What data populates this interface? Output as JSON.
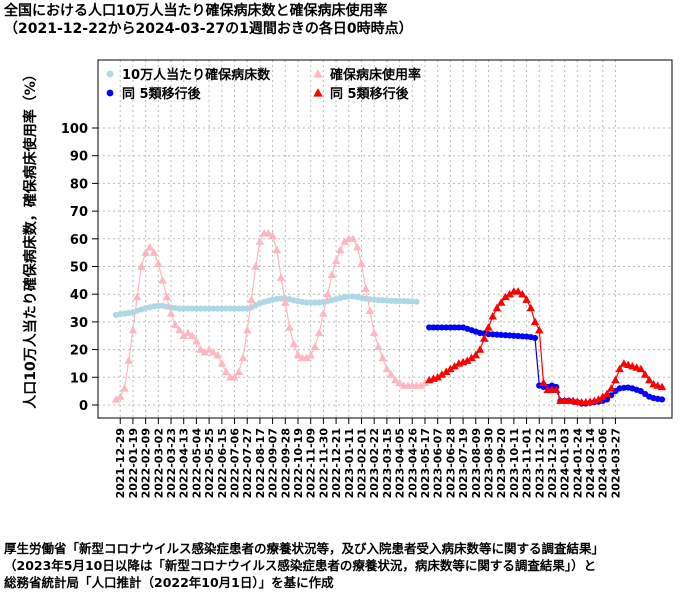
{
  "title": {
    "line1": "全国における人口10万人当たり確保病床数と確保病床使用率",
    "line2": "（2021-12-22から2024-03-27の1週間おきの各日0時時点）"
  },
  "footnote": {
    "line1": "厚生労働省「新型コロナウイルス感染症患者の療養状況等，及び入院患者受入病床数等に関する調査結果」",
    "line2": "（2023年5月10日以降は「新型コロナウイルス感染症患者の療養状況，病床数等に関する調査結果」）と",
    "line3": "総務省統計局「人口推計（2022年10月1日）」を基に作成"
  },
  "colors": {
    "beds": "#add8e6",
    "beds_after": "#0000ff",
    "usage": "#ffb6c1",
    "usage_after": "#ff0000",
    "grid": "#bbbbbb"
  },
  "chart_data": {
    "type": "scatter",
    "ylabel": "人口10万人当たり確保病床数，確保病床使用率（%）",
    "xlabel": "",
    "ylim": [
      0,
      100
    ],
    "yticks": [
      0,
      10,
      20,
      30,
      40,
      50,
      60,
      70,
      80,
      90,
      100
    ],
    "grid": true,
    "legend_position": "top-left",
    "x_start": "2021-12-22",
    "x_step_days": 7,
    "x_tick_labels": [
      "2021-12-29",
      "2022-01-19",
      "2022-02-09",
      "2022-03-02",
      "2022-03-23",
      "2022-04-13",
      "2022-05-04",
      "2022-05-25",
      "2022-06-15",
      "2022-07-06",
      "2022-07-27",
      "2022-08-17",
      "2022-09-07",
      "2022-09-28",
      "2022-10-19",
      "2022-11-09",
      "2022-11-30",
      "2022-12-21",
      "2023-01-11",
      "2023-02-01",
      "2023-02-22",
      "2023-03-15",
      "2023-04-05",
      "2023-04-26",
      "2023-05-17",
      "2023-06-07",
      "2023-06-28",
      "2023-07-19",
      "2023-08-09",
      "2023-08-30",
      "2023-09-20",
      "2023-10-11",
      "2023-11-01",
      "2023-11-22",
      "2023-12-13",
      "2024-01-03",
      "2024-01-24",
      "2024-02-14",
      "2024-03-06",
      "2024-03-27"
    ],
    "series": [
      {
        "name": "10万人当たり確保病床数",
        "marker": "circle",
        "color": "#add8e6",
        "start_index": 0,
        "values": [
          32.5,
          32.8,
          33.0,
          33.2,
          33.5,
          34.0,
          34.5,
          35.0,
          35.3,
          35.6,
          35.8,
          35.8,
          35.5,
          35.2,
          35.0,
          34.8,
          34.8,
          34.8,
          34.8,
          34.8,
          34.8,
          34.8,
          34.8,
          34.8,
          34.8,
          34.8,
          34.8,
          34.8,
          34.8,
          34.8,
          34.8,
          34.8,
          35.2,
          36.0,
          36.8,
          37.2,
          37.6,
          38.0,
          38.3,
          38.4,
          38.4,
          38.2,
          37.8,
          37.5,
          37.2,
          37.0,
          37.0,
          37.0,
          37.0,
          37.2,
          37.5,
          37.8,
          38.2,
          38.6,
          39.0,
          39.2,
          39.2,
          39.0,
          38.7,
          38.4,
          38.2,
          38.0,
          37.9,
          37.8,
          37.7,
          37.6,
          37.5,
          37.5,
          37.5,
          37.4,
          37.4,
          37.3
        ]
      },
      {
        "name": "確保病床使用率",
        "marker": "triangle",
        "color": "#ffb6c1",
        "start_index": 0,
        "values": [
          2,
          3,
          6,
          16,
          27,
          39,
          50,
          55,
          57,
          55,
          51,
          45,
          39,
          33,
          29,
          27,
          25,
          26,
          25,
          23,
          20,
          19,
          20,
          19,
          18,
          15,
          12,
          10,
          10,
          12,
          17,
          27,
          38,
          50,
          59,
          62,
          62,
          61,
          56,
          46,
          37,
          28,
          22,
          18,
          17,
          17,
          18,
          21,
          26,
          33,
          40,
          47,
          52,
          56,
          59,
          60,
          60,
          57,
          51,
          42,
          34,
          26,
          21,
          17,
          13,
          11,
          9,
          8,
          7,
          7,
          7,
          7,
          7,
          8
        ]
      },
      {
        "name": "同 5類移行後",
        "marker": "circle",
        "color": "#0000ff",
        "start_index": 74,
        "values": [
          28,
          28,
          28,
          28,
          28,
          28,
          28,
          28,
          28,
          27.5,
          27,
          26.5,
          26,
          25.8,
          25.6,
          25.5,
          25.4,
          25.3,
          25.2,
          25.1,
          25.0,
          24.9,
          24.8,
          24.7,
          24.5,
          24.2,
          7,
          6.5,
          6.5,
          7,
          6.5,
          1.5,
          1.5,
          1.5,
          1.2,
          1.0,
          0.5,
          0.5,
          0.8,
          1.0,
          1.2,
          1.5,
          2,
          3.5,
          5,
          6,
          6.2,
          6.3,
          6,
          5.5,
          5,
          4,
          3,
          2.5,
          2.2,
          2
        ]
      },
      {
        "name": "同 5類移行後",
        "marker": "triangle",
        "color": "#ff0000",
        "start_index": 74,
        "values": [
          9,
          9.5,
          10,
          11,
          12,
          13,
          14,
          15,
          15.5,
          16,
          17,
          18,
          20,
          24,
          28,
          32,
          35,
          37,
          39,
          40,
          41,
          41,
          40,
          38,
          35,
          30,
          27,
          8,
          5.5,
          5.5,
          5.5,
          1.5,
          1.5,
          1.5,
          1.5,
          1.2,
          1.0,
          1.0,
          1.2,
          1.5,
          2,
          3,
          4,
          6,
          9,
          13,
          15,
          14.5,
          14,
          13.5,
          13,
          11,
          9,
          7.5,
          7,
          6.5
        ]
      }
    ]
  }
}
